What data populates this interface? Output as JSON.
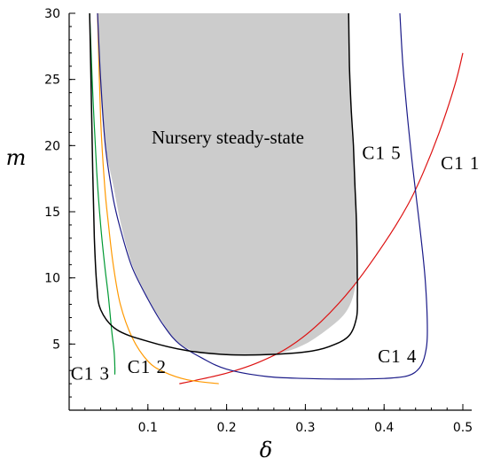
{
  "chart_data": {
    "type": "line",
    "xlabel": "δ",
    "ylabel": "m",
    "xlim": [
      0.0,
      0.5
    ],
    "ylim": [
      0,
      30
    ],
    "x_ticks": [
      0.1,
      0.2,
      0.3,
      0.4,
      0.5
    ],
    "y_ticks": [
      5,
      10,
      15,
      20,
      25,
      30
    ],
    "x_minor_step": 0.02,
    "y_minor_step": 1,
    "grid": false,
    "region": {
      "label": "Nursery steady-state",
      "color": "#cccccc",
      "boundary": [
        [
          0.036,
          30
        ],
        [
          0.04,
          24
        ],
        [
          0.046,
          20
        ],
        [
          0.056,
          17
        ],
        [
          0.066,
          14
        ],
        [
          0.08,
          11
        ],
        [
          0.1,
          8.5
        ],
        [
          0.12,
          6.5
        ],
        [
          0.14,
          5.0
        ],
        [
          0.17,
          4.3
        ],
        [
          0.2,
          4.2
        ],
        [
          0.24,
          4.2
        ],
        [
          0.27,
          4.35
        ],
        [
          0.3,
          5.0
        ],
        [
          0.33,
          6.2
        ],
        [
          0.35,
          7.3
        ],
        [
          0.36,
          8.5
        ],
        [
          0.365,
          10
        ],
        [
          0.366,
          11
        ],
        [
          0.365,
          14
        ],
        [
          0.364,
          16
        ],
        [
          0.362,
          18
        ],
        [
          0.36,
          20
        ],
        [
          0.358,
          22
        ],
        [
          0.356,
          25
        ],
        [
          0.355,
          28
        ],
        [
          0.354,
          30
        ]
      ]
    },
    "series": [
      {
        "name": "C1 1",
        "color": "#dd1111",
        "points": [
          [
            0.14,
            2.0
          ],
          [
            0.16,
            2.25
          ],
          [
            0.2,
            2.8
          ],
          [
            0.24,
            3.6
          ],
          [
            0.28,
            4.8
          ],
          [
            0.32,
            6.7
          ],
          [
            0.36,
            9.3
          ],
          [
            0.4,
            12.6
          ],
          [
            0.43,
            15.5
          ],
          [
            0.45,
            18.0
          ],
          [
            0.47,
            21.0
          ],
          [
            0.49,
            24.6
          ],
          [
            0.5,
            27.0
          ]
        ]
      },
      {
        "name": "C1 2",
        "color": "#ff9900",
        "points": [
          [
            0.036,
            30
          ],
          [
            0.04,
            22
          ],
          [
            0.045,
            17
          ],
          [
            0.05,
            14
          ],
          [
            0.056,
            11
          ],
          [
            0.065,
            8
          ],
          [
            0.08,
            5.5
          ],
          [
            0.1,
            3.7
          ],
          [
            0.12,
            2.9
          ],
          [
            0.15,
            2.3
          ],
          [
            0.19,
            2.0
          ]
        ]
      },
      {
        "name": "C1 3",
        "color": "#009933",
        "points": [
          [
            0.026,
            30
          ],
          [
            0.03,
            24
          ],
          [
            0.035,
            18
          ],
          [
            0.04,
            14
          ],
          [
            0.045,
            11
          ],
          [
            0.05,
            8.5
          ],
          [
            0.054,
            6
          ],
          [
            0.057,
            4.5
          ],
          [
            0.058,
            3.3
          ],
          [
            0.058,
            2.7
          ]
        ]
      },
      {
        "name": "C1 4",
        "color": "#1a1a88",
        "points": [
          [
            0.036,
            30
          ],
          [
            0.04,
            25
          ],
          [
            0.046,
            20
          ],
          [
            0.056,
            16
          ],
          [
            0.066,
            13.5
          ],
          [
            0.08,
            10.8
          ],
          [
            0.1,
            8.4
          ],
          [
            0.12,
            6.4
          ],
          [
            0.14,
            5.0
          ],
          [
            0.17,
            3.9
          ],
          [
            0.2,
            3.1
          ],
          [
            0.25,
            2.55
          ],
          [
            0.3,
            2.4
          ],
          [
            0.35,
            2.35
          ],
          [
            0.4,
            2.4
          ],
          [
            0.43,
            2.6
          ],
          [
            0.445,
            3.2
          ],
          [
            0.452,
            4.2
          ],
          [
            0.455,
            6
          ],
          [
            0.452,
            10
          ],
          [
            0.445,
            14
          ],
          [
            0.437,
            18
          ],
          [
            0.43,
            22
          ],
          [
            0.424,
            26
          ],
          [
            0.42,
            30
          ]
        ]
      },
      {
        "name": "C1 5",
        "color": "#000000",
        "points": [
          [
            0.026,
            30
          ],
          [
            0.028,
            24
          ],
          [
            0.03,
            18
          ],
          [
            0.032,
            13
          ],
          [
            0.035,
            9.5
          ],
          [
            0.04,
            7.6
          ],
          [
            0.06,
            6.1
          ],
          [
            0.1,
            5.2
          ],
          [
            0.15,
            4.5
          ],
          [
            0.2,
            4.2
          ],
          [
            0.25,
            4.2
          ],
          [
            0.3,
            4.4
          ],
          [
            0.33,
            4.8
          ],
          [
            0.355,
            5.6
          ],
          [
            0.365,
            7.0
          ],
          [
            0.366,
            8.5
          ],
          [
            0.366,
            10
          ],
          [
            0.365,
            14
          ],
          [
            0.363,
            17
          ],
          [
            0.361,
            20
          ],
          [
            0.358,
            23
          ],
          [
            0.356,
            26
          ],
          [
            0.355,
            30
          ]
        ]
      }
    ],
    "curve_labels": [
      {
        "text": "C1 1",
        "x": 0.472,
        "y": 18.2
      },
      {
        "text": "C1 2",
        "x": 0.074,
        "y": 2.8
      },
      {
        "text": "C1 3",
        "x": 0.002,
        "y": 2.3
      },
      {
        "text": "C1 4",
        "x": 0.392,
        "y": 3.6
      },
      {
        "text": "C1 5",
        "x": 0.372,
        "y": 19.0
      }
    ]
  }
}
